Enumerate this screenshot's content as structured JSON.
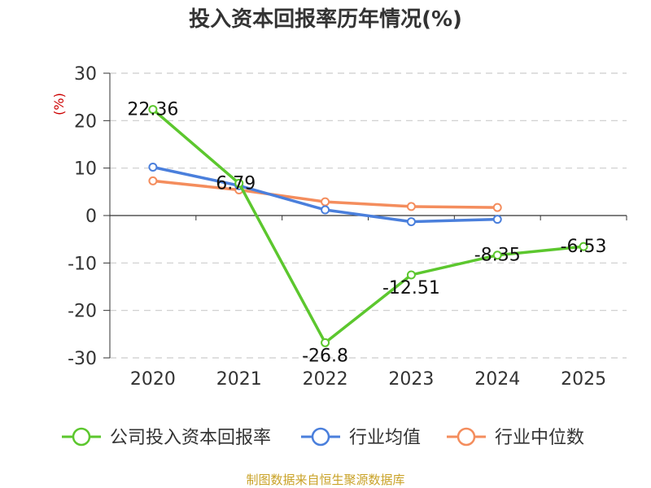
{
  "chart_data": {
    "type": "line",
    "title": "投入资本回报率历年情况(%)",
    "ylabel": "(%)",
    "xlabel": "",
    "categories": [
      "2020",
      "2021",
      "2022",
      "2023",
      "2024",
      "2025"
    ],
    "ylim": [
      -30,
      30
    ],
    "yticks": [
      30,
      20,
      10,
      0,
      -10,
      -20,
      -30
    ],
    "grid": true,
    "legend_position": "bottom",
    "series": [
      {
        "name": "公司投入资本回报率",
        "color": "#5cc72e",
        "values": [
          22.36,
          6.79,
          -26.8,
          -12.51,
          -8.35,
          -6.53
        ],
        "labels": [
          "22.36",
          "6.79",
          "-26.8",
          "-12.51",
          "-8.35",
          "-6.53"
        ]
      },
      {
        "name": "行业均值",
        "color": "#4a7fdc",
        "values": [
          10.2,
          6.3,
          1.2,
          -1.3,
          -0.8,
          null
        ]
      },
      {
        "name": "行业中位数",
        "color": "#f48d5d",
        "values": [
          7.3,
          5.4,
          2.9,
          1.9,
          1.7,
          null
        ]
      }
    ],
    "source": "制图数据来自恒生聚源数据库"
  }
}
